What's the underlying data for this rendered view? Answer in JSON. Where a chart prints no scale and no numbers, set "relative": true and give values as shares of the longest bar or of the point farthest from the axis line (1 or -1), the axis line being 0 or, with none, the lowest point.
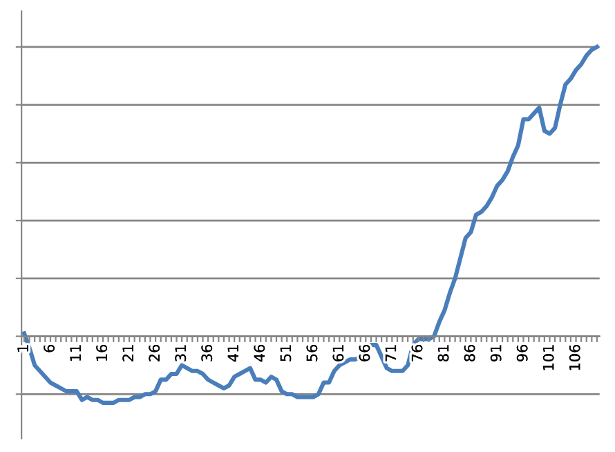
{
  "chart_data": {
    "type": "line",
    "relative": true,
    "grid": "y",
    "line_style": "solid",
    "marker": "none",
    "categories": [
      "1",
      null,
      null,
      null,
      null,
      "6",
      null,
      null,
      null,
      null,
      "11",
      null,
      null,
      null,
      null,
      "16",
      null,
      null,
      null,
      null,
      "21",
      null,
      null,
      null,
      null,
      "26",
      null,
      null,
      null,
      null,
      "31",
      null,
      null,
      null,
      null,
      "36",
      null,
      null,
      null,
      null,
      "41",
      null,
      null,
      null,
      null,
      "46",
      null,
      null,
      null,
      null,
      "51",
      null,
      null,
      null,
      null,
      "56",
      null,
      null,
      null,
      null,
      "61",
      null,
      null,
      null,
      null,
      "66",
      null,
      null,
      null,
      null,
      "71",
      null,
      null,
      null,
      null,
      "76",
      null,
      null,
      null,
      null,
      "81",
      null,
      null,
      null,
      null,
      "86",
      null,
      null,
      null,
      null,
      "91",
      null,
      null,
      null,
      null,
      "96",
      null,
      null,
      null,
      null,
      "101",
      null,
      null,
      null,
      null,
      "106",
      null,
      null,
      null,
      null
    ],
    "series": [
      {
        "color": "#4a7ebb",
        "values": [
          0.01,
          -0.04,
          -0.1,
          -0.12,
          -0.14,
          -0.16,
          -0.17,
          -0.18,
          -0.19,
          -0.19,
          -0.19,
          -0.22,
          -0.21,
          -0.22,
          -0.22,
          -0.23,
          -0.23,
          -0.23,
          -0.22,
          -0.22,
          -0.22,
          -0.21,
          -0.21,
          -0.2,
          -0.2,
          -0.19,
          -0.15,
          -0.15,
          -0.13,
          -0.13,
          -0.1,
          -0.11,
          -0.12,
          -0.12,
          -0.13,
          -0.15,
          -0.16,
          -0.17,
          -0.18,
          -0.17,
          -0.14,
          -0.13,
          -0.12,
          -0.11,
          -0.15,
          -0.15,
          -0.16,
          -0.14,
          -0.15,
          -0.19,
          -0.2,
          -0.2,
          -0.21,
          -0.21,
          -0.21,
          -0.21,
          -0.2,
          -0.16,
          -0.16,
          -0.12,
          -0.1,
          -0.09,
          -0.08,
          -0.08,
          -0.07,
          -0.05,
          -0.03,
          -0.03,
          -0.07,
          -0.11,
          -0.12,
          -0.12,
          -0.12,
          -0.1,
          -0.03,
          -0.01,
          -0.01,
          -0.01,
          0.0,
          0.05,
          0.09,
          0.15,
          0.2,
          0.27,
          0.34,
          0.36,
          0.42,
          0.43,
          0.45,
          0.48,
          0.52,
          0.54,
          0.57,
          0.62,
          0.66,
          0.75,
          0.75,
          0.77,
          0.79,
          0.71,
          0.7,
          0.72,
          0.8,
          0.87,
          0.89,
          0.92,
          0.94,
          0.97,
          0.99,
          1.0
        ]
      }
    ]
  }
}
